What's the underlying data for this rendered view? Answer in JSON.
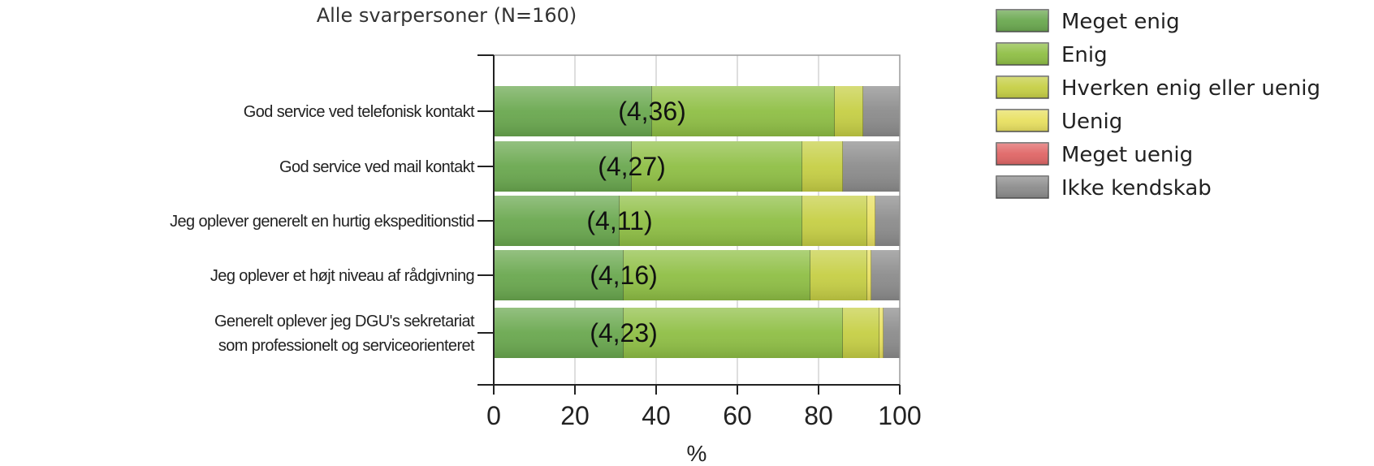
{
  "chart_data": {
    "type": "bar",
    "stacked": true,
    "orientation": "horizontal",
    "title": "Alle svarpersoner (N=160)",
    "xlabel": "%",
    "xlim": [
      0,
      100
    ],
    "xticks": [
      "0",
      "20",
      "40",
      "60",
      "80",
      "100"
    ],
    "grid": true,
    "legend_position": "top-right",
    "categories": [
      [
        "God service ved telefonisk kontakt"
      ],
      [
        "God service ved mail kontakt"
      ],
      [
        "Jeg oplever generelt en hurtig ekspeditionstid"
      ],
      [
        "Jeg oplever et højt niveau af rådgivning"
      ],
      [
        "Generelt oplever jeg DGU's sekretariat",
        "som professionelt og serviceorienteret"
      ]
    ],
    "means": [
      "(4,36)",
      "(4,27)",
      "(4,11)",
      "(4,16)",
      "(4,23)"
    ],
    "series": [
      {
        "name": "Meget enig",
        "color": "#6aa84f",
        "values": [
          39,
          34,
          31,
          32,
          32
        ]
      },
      {
        "name": "Enig",
        "color": "#8fbf45",
        "values": [
          45,
          42,
          45,
          46,
          54
        ]
      },
      {
        "name": "Hverken enig eller uenig",
        "color": "#c6cf45",
        "values": [
          7,
          10,
          16,
          14,
          9
        ]
      },
      {
        "name": "Uenig",
        "color": "#e8e060",
        "values": [
          0,
          0,
          2,
          1,
          1
        ]
      },
      {
        "name": "Meget uenig",
        "color": "#e06666",
        "values": [
          0,
          0,
          0,
          0,
          0
        ]
      },
      {
        "name": "Ikke kendskab",
        "color": "#8c8c8c",
        "values": [
          9,
          14,
          6,
          7,
          4
        ]
      }
    ]
  }
}
